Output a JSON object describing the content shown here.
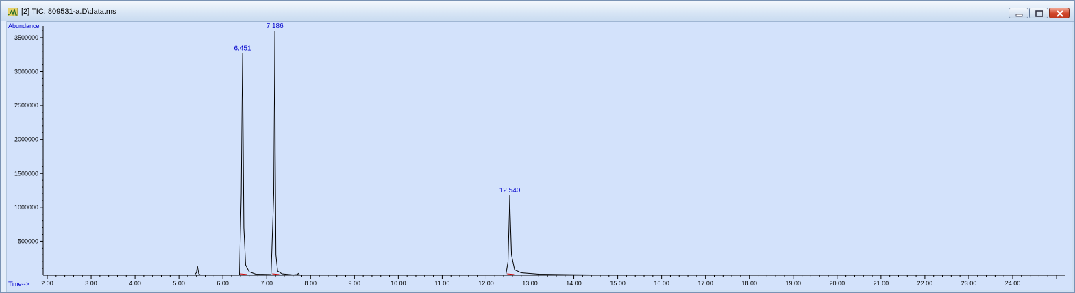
{
  "window": {
    "title": "[2] TIC: 809531-a.D\\data.ms",
    "buttons": {
      "minimize": "minimize-icon",
      "maximize": "maximize-icon",
      "close": "close-icon"
    }
  },
  "colors": {
    "plot_bg": "#d3e2fb",
    "trace": "#000000",
    "axis_label": "#0000cc",
    "peak_label": "#0000cc",
    "baseline_marker": "#cc0000"
  },
  "chart_data": {
    "type": "line",
    "ylabel": "Abundance",
    "xlabel": "Time-->",
    "xlim": [
      1.9,
      25.2
    ],
    "ylim": [
      0,
      3600000
    ],
    "x_ticks": [
      2,
      3,
      4,
      5,
      6,
      7,
      8,
      9,
      10,
      11,
      12,
      13,
      14,
      15,
      16,
      17,
      18,
      19,
      20,
      21,
      22,
      23,
      24
    ],
    "x_tick_labels": [
      "2.00",
      "3.00",
      "4.00",
      "5.00",
      "6.00",
      "7.00",
      "8.00",
      "9.00",
      "10.00",
      "11.00",
      "12.00",
      "13.00",
      "14.00",
      "15.00",
      "16.00",
      "17.00",
      "18.00",
      "19.00",
      "20.00",
      "21.00",
      "22.00",
      "23.00",
      "24.00"
    ],
    "y_ticks": [
      500000,
      1000000,
      1500000,
      2000000,
      2500000,
      3000000,
      3500000
    ],
    "y_tick_labels": [
      "500000",
      "1000000",
      "1500000",
      "2000000",
      "2500000",
      "3000000",
      "3500000"
    ],
    "peaks": [
      {
        "rt": 5.42,
        "height": 140000,
        "label": ""
      },
      {
        "rt": 6.451,
        "height": 3270000,
        "label": "6.451"
      },
      {
        "rt": 7.186,
        "height": 3600000,
        "label": "7.186"
      },
      {
        "rt": 7.72,
        "height": 25000,
        "label": ""
      },
      {
        "rt": 12.54,
        "height": 1180000,
        "label": "12.540"
      }
    ],
    "series": [
      {
        "x": [
          1.95,
          5.35,
          5.4,
          5.42,
          5.45,
          5.5,
          6.38,
          6.42,
          6.44,
          6.451,
          6.46,
          6.48,
          6.52,
          6.6,
          6.75,
          7.1,
          7.16,
          7.18,
          7.186,
          7.195,
          7.21,
          7.25,
          7.35,
          7.6,
          7.7,
          7.72,
          7.75,
          8.0,
          12.45,
          12.5,
          12.53,
          12.54,
          12.55,
          12.58,
          12.65,
          12.8,
          13.2,
          14.0,
          14.8,
          25.1
        ],
        "y": [
          0,
          0,
          40000,
          140000,
          20000,
          0,
          0,
          1200000,
          2600000,
          3270000,
          2400000,
          700000,
          150000,
          50000,
          15000,
          10000,
          1200000,
          3000000,
          3600000,
          1800000,
          300000,
          60000,
          20000,
          5000,
          10000,
          25000,
          5000,
          0,
          0,
          200000,
          900000,
          1180000,
          900000,
          300000,
          80000,
          35000,
          15000,
          8000,
          3000,
          0
        ]
      }
    ]
  }
}
